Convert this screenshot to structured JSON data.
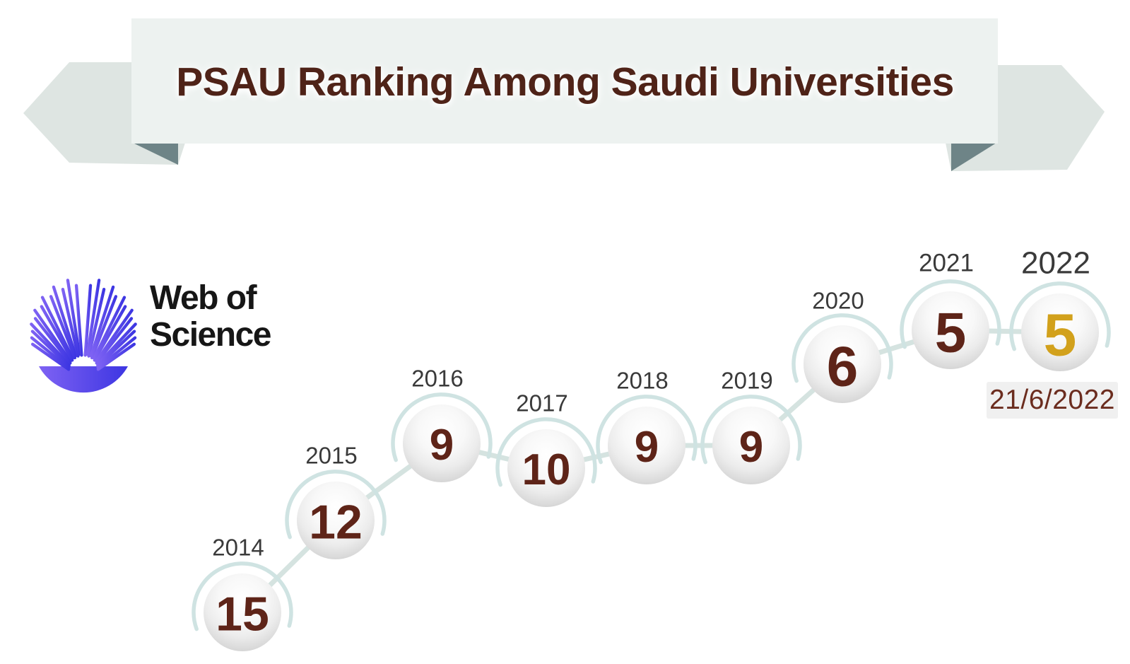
{
  "page": {
    "background": "#ffffff"
  },
  "banner": {
    "title": "PSAU Ranking Among Saudi Universities",
    "colors": {
      "bg": "#edf2f0",
      "ribbon_tail": "#dee5e2",
      "fold": "#6e8487",
      "title_text": "#4f2318"
    }
  },
  "logo": {
    "line1": "Web of",
    "line2": "Science",
    "colors": {
      "burst_left": "#7e62f3",
      "burst_right": "#3d36e2",
      "text": "#161616"
    }
  },
  "chart_data": {
    "type": "line",
    "title": "PSAU Ranking Among Saudi Universities",
    "x": [
      "2014",
      "2015",
      "2016",
      "2017",
      "2018",
      "2019",
      "2020",
      "2021",
      "2022"
    ],
    "values": [
      15,
      12,
      9,
      10,
      9,
      9,
      6,
      5,
      5
    ],
    "annotation": "21/6/2022",
    "highlight_index": 8,
    "grid": false,
    "legend": "none",
    "colors": {
      "number": "#5e2418",
      "highlight_number": "#d2a11c",
      "year_label": "#3a3a3a",
      "connector": "#d5e3e0",
      "arc": "#cfe3e2",
      "annotation_text": "#6b2c1e",
      "annotation_bg": "#f0f0f0",
      "sphere_center": "#ffffff",
      "sphere_edge": "#c7c7c7"
    }
  }
}
